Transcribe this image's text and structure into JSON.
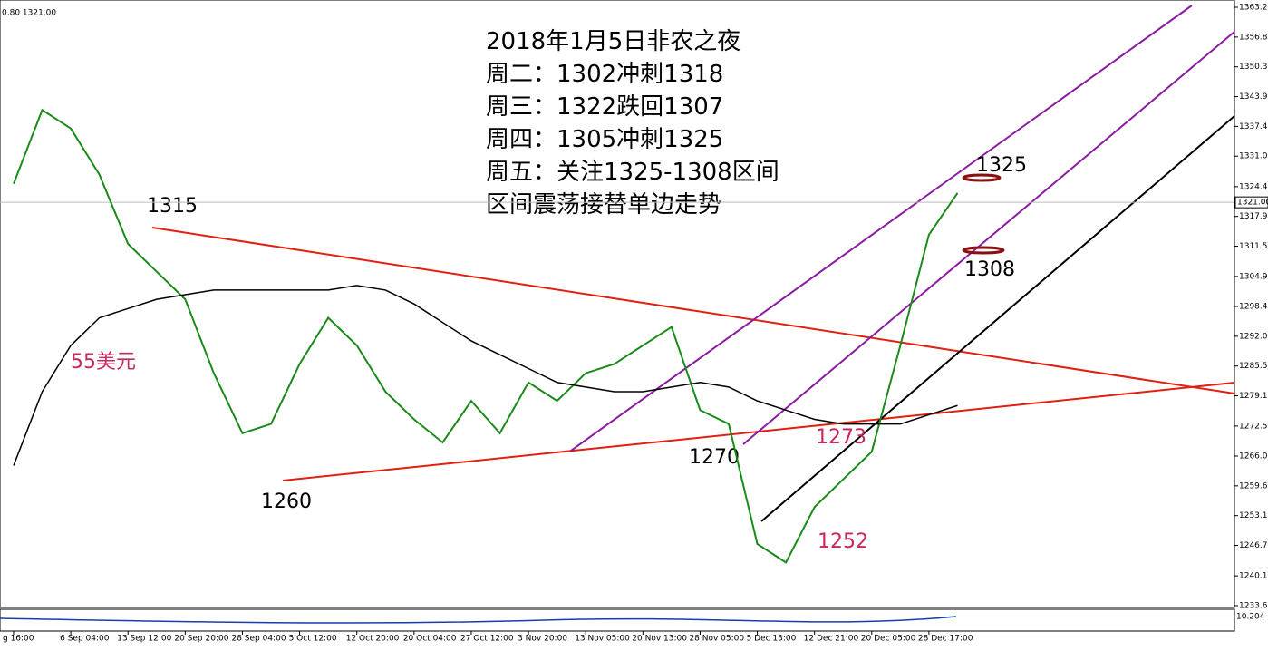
{
  "chart_data": {
    "type": "line",
    "header_text": "0.80 1321.00",
    "indicator_label": "10.204",
    "categories": [
      "g 16:00",
      null,
      "6 Sep 04:00",
      null,
      "13 Sep 12:00",
      null,
      "20 Sep 20:00",
      null,
      "28 Sep 04:00",
      null,
      "5 Oct 12:00",
      null,
      "12 Oct 20:00",
      null,
      "20 Oct 04:00",
      null,
      "27 Oct 12:00",
      null,
      "3 Nov 20:00",
      null,
      "13 Nov 05:00",
      null,
      "20 Nov 13:00",
      null,
      "28 Nov 05:00",
      null,
      "5 Dec 13:00",
      null,
      "12 Dec 21:00",
      null,
      "20 Dec 05:00",
      null,
      "28 Dec 17:00",
      null
    ],
    "series": [
      {
        "color": "#1a8a1a",
        "values": [
          1325,
          1341,
          1337,
          1327,
          1312,
          1306,
          1300,
          1284,
          1271,
          1273,
          1286,
          1296,
          1290,
          1280,
          1274,
          1269,
          1278,
          1271,
          1282,
          1278,
          1284,
          1286,
          1290,
          1294,
          1276,
          1273,
          1247,
          1243,
          1255,
          1261,
          1267,
          1290,
          1314,
          1323
        ]
      },
      {
        "color": "#000000",
        "values": [
          1264,
          1280,
          1290,
          1296,
          1298,
          1300,
          1301,
          1302,
          1302,
          1302,
          1302,
          1302,
          1303,
          1302,
          1299,
          1295,
          1291,
          1288,
          1285,
          1282,
          1281,
          1280,
          1280,
          1281,
          1282,
          1281,
          1278,
          1276,
          1274,
          1273,
          1273,
          1273,
          1275,
          1277
        ]
      }
    ],
    "ylim": [
      1233.65,
      1363.25
    ],
    "yticks": [
      {
        "value": 1363.25,
        "label": "1363.25"
      },
      {
        "value": 1356.8,
        "label": "1356.80"
      },
      {
        "value": 1350.35,
        "label": "1350.35"
      },
      {
        "value": 1343.9,
        "label": "1343.90"
      },
      {
        "value": 1337.45,
        "label": "1337.45"
      },
      {
        "value": 1331,
        "label": "1331.00"
      },
      {
        "value": 1324.4,
        "label": "1324.40"
      },
      {
        "value": 1317.95,
        "label": "1317.95"
      },
      {
        "value": 1311.5,
        "label": "1311.50"
      },
      {
        "value": 1304.95,
        "label": "1304.95"
      },
      {
        "value": 1298.45,
        "label": "1298.45"
      },
      {
        "value": 1292,
        "label": "1292.00"
      },
      {
        "value": 1285.55,
        "label": "1285.55"
      },
      {
        "value": 1279.1,
        "label": "1279.10"
      },
      {
        "value": 1272.55,
        "label": "1272.55"
      },
      {
        "value": 1266.05,
        "label": "1266.05"
      },
      {
        "value": 1259.6,
        "label": "1259.60"
      },
      {
        "value": 1253.15,
        "label": "1253.15"
      },
      {
        "value": 1246.7,
        "label": "1246.70"
      },
      {
        "value": 1240.1,
        "label": "1240.10"
      },
      {
        "value": 1233.65,
        "label": "1233.65"
      }
    ],
    "price_marker": {
      "value": 1321,
      "label": "1321.00"
    },
    "headline": [
      "2018年1月5日非农之夜",
      "周二：1302冲刺1318",
      "周三：1322跌回1307",
      "周四：1305冲刺1325",
      "周五：关注1325-1308区间",
      "区间震荡接替单边走势"
    ],
    "annotations": [
      "1315",
      "1260",
      "1270",
      "1273",
      "1252",
      "1325",
      "1308",
      "55美元"
    ]
  }
}
